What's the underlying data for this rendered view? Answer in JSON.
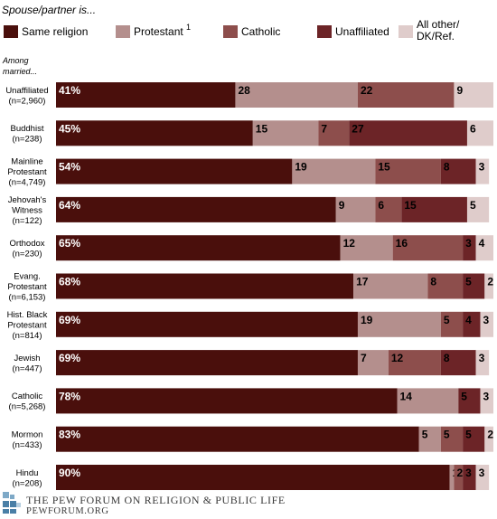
{
  "chart_data": {
    "type": "bar",
    "orientation": "horizontal",
    "stacked": true,
    "title": "Spouse/partner is...",
    "group_label": "Among married...",
    "percent_suffix_first": "%",
    "legend": {
      "placement": "top",
      "entries": [
        {
          "name": "Same religion",
          "color": "#4a0f0c"
        },
        {
          "name": "Protestant",
          "superscript": "1",
          "color": "#b48f8d"
        },
        {
          "name": "Catholic",
          "color": "#8d4e4c"
        },
        {
          "name": "Unaffiliated",
          "color": "#6c2427"
        },
        {
          "name": "All other/ DK/Ref.",
          "color": "#dfcccb"
        }
      ]
    },
    "categories": [
      {
        "label": [
          "Unaffiliated",
          "(n=2,960)"
        ],
        "values": [
          41,
          28,
          22,
          0,
          9
        ]
      },
      {
        "label": [
          "Buddhist",
          "(n=238)"
        ],
        "values": [
          45,
          15,
          7,
          27,
          6
        ]
      },
      {
        "label": [
          "Mainline",
          "Protestant",
          "(n=4,749)"
        ],
        "values": [
          54,
          19,
          15,
          8,
          3
        ]
      },
      {
        "label": [
          "Jehovah's",
          "Witness",
          "(n=122)"
        ],
        "values": [
          64,
          9,
          6,
          15,
          5
        ]
      },
      {
        "label": [
          "Orthodox",
          "(n=230)"
        ],
        "values": [
          65,
          12,
          16,
          3,
          4
        ]
      },
      {
        "label": [
          "Evang.",
          "Protestant",
          "(n=6,153)"
        ],
        "values": [
          68,
          17,
          8,
          5,
          2
        ]
      },
      {
        "label": [
          "Hist. Black",
          "Protestant",
          "(n=814)"
        ],
        "values": [
          69,
          19,
          5,
          4,
          3
        ]
      },
      {
        "label": [
          "Jewish",
          "(n=447)"
        ],
        "values": [
          69,
          7,
          12,
          8,
          3
        ]
      },
      {
        "label": [
          "Catholic",
          "(n=5,268)"
        ],
        "values": [
          78,
          14,
          0,
          5,
          3
        ]
      },
      {
        "label": [
          "Mormon",
          "(n=433)"
        ],
        "values": [
          83,
          5,
          5,
          5,
          2
        ]
      },
      {
        "label": [
          "Hindu",
          "(n=208)"
        ],
        "values": [
          90,
          1,
          2,
          3,
          3
        ]
      }
    ]
  },
  "footer": {
    "org": "The Pew Forum on Religion & Public Life",
    "site": "pewforum.org",
    "logo_colors": [
      "#4a7fa6",
      "#7ea9c7",
      "#b7cfe0"
    ]
  }
}
